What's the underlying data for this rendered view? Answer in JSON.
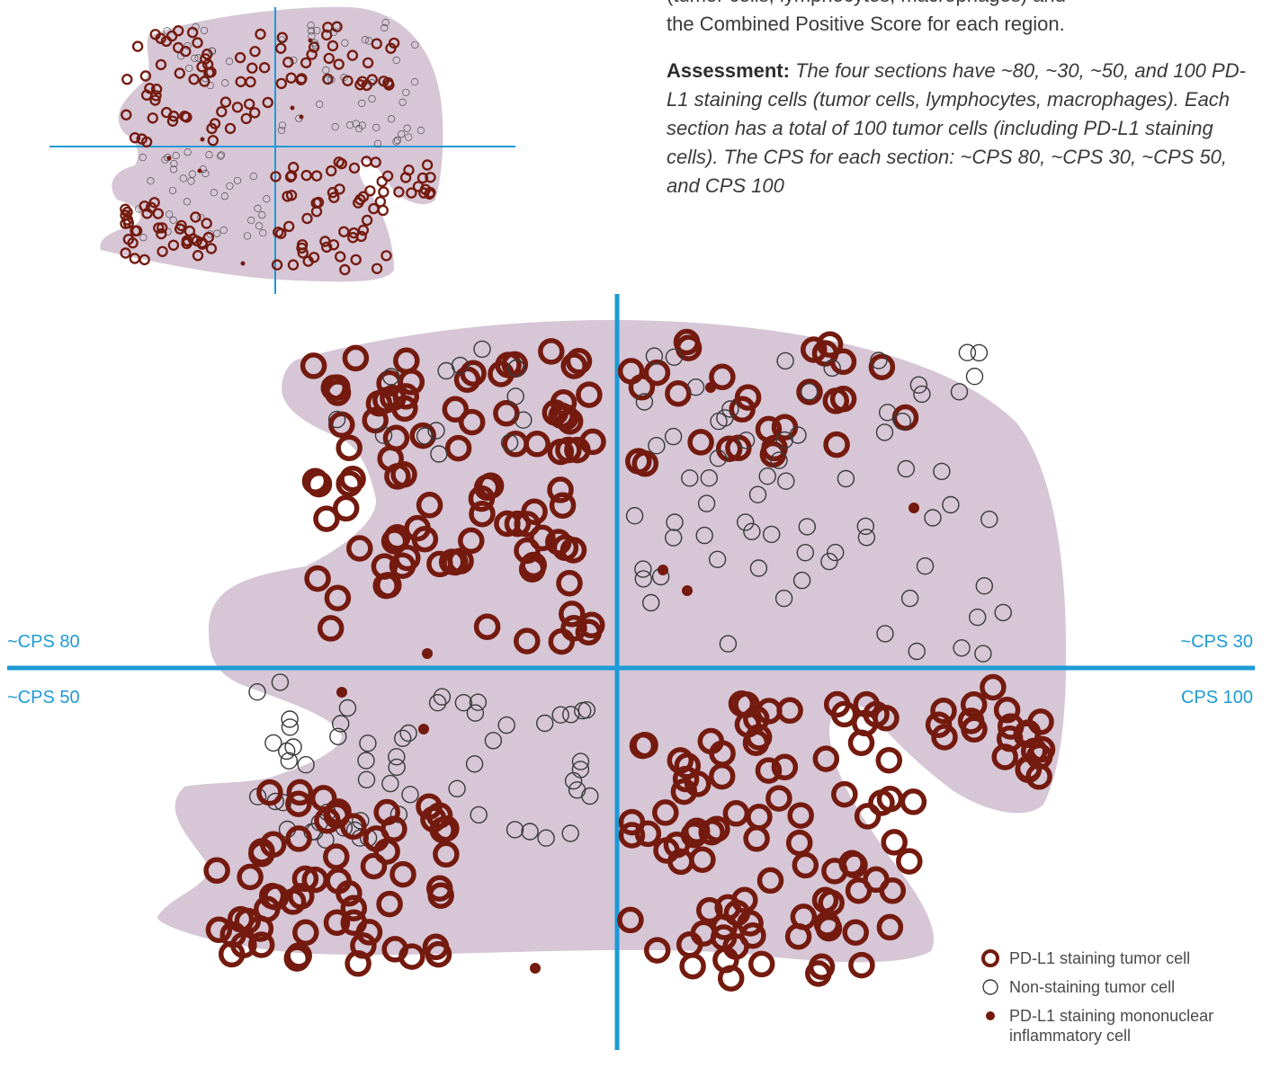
{
  "intro": {
    "line_partial": "(tumor cells, lymphocytes, macrophages) and",
    "line_2": "the Combined Positive Score for each region.",
    "assessment_label": "Assessment:",
    "assessment_text": "The four sections have ~80, ~30, ~50, and 100 PD-L1 staining cells (tumor cells, lymphocytes, macrophages). Each section has a total of 100 tumor cells (including PD-L1 staining cells). The CPS for each section: ~CPS 80, ~CPS 30, ~CPS 50, and CPS 100"
  },
  "quadrants": {
    "top_left": "~CPS 80",
    "top_right": "~CPS 30",
    "bottom_left": "~CPS 50",
    "bottom_right": "CPS 100"
  },
  "legend": {
    "staining_tumor": "PD-L1 staining tumor cell",
    "non_staining_tumor": "Non-staining tumor cell",
    "inflammatory": "PD-L1 staining mononuclear inflammatory cell"
  },
  "colors": {
    "tissue": "#d6c6d6",
    "staining": "#741a0e",
    "non_staining": "#3a3a3a",
    "divider": "#1e9ad6"
  },
  "icons": {
    "staining_tumor": "thick-ring-icon",
    "non_staining_tumor": "thin-ring-icon",
    "inflammatory": "filled-dot-icon"
  }
}
